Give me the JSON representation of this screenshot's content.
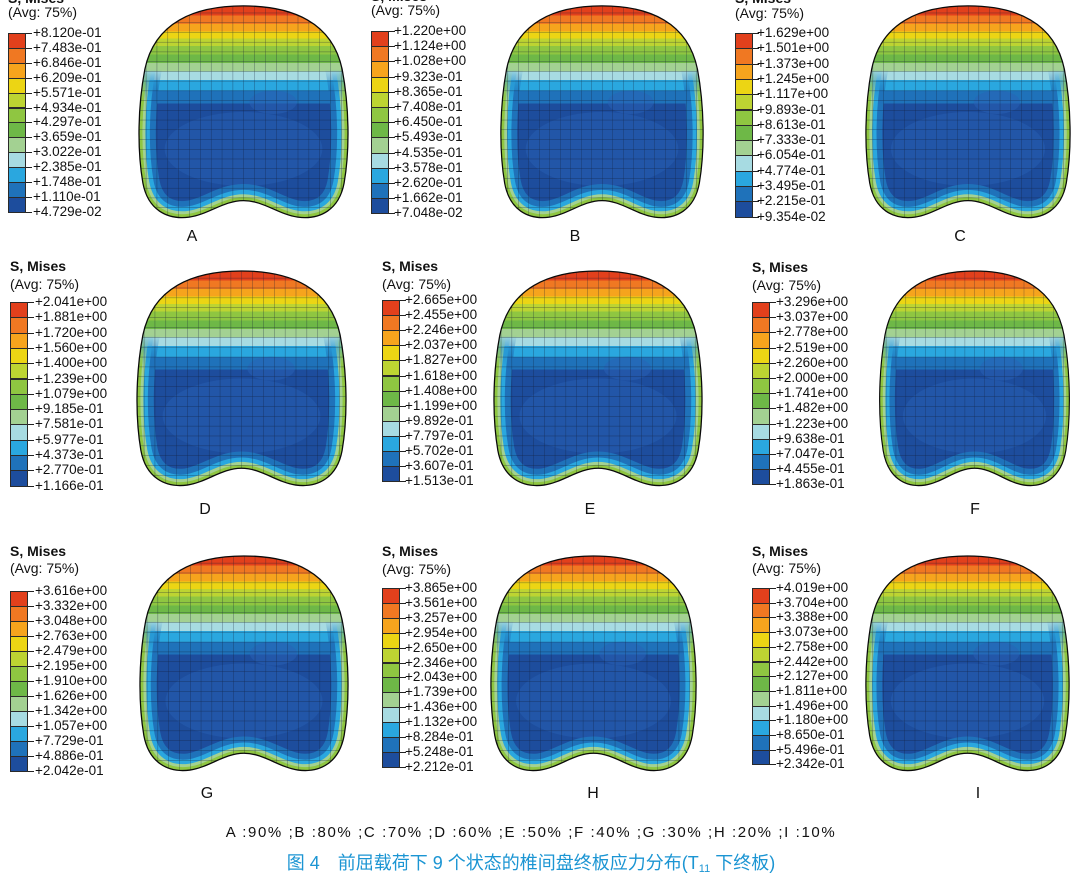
{
  "legend_colors": [
    "#e2401c",
    "#f07822",
    "#f6a41d",
    "#ecd514",
    "#bdd432",
    "#8fc641",
    "#6eb847",
    "#a3d192",
    "#a7dbe2",
    "#2aa7df",
    "#1f72ba",
    "#1d4d9d"
  ],
  "panels": [
    {
      "label": "A",
      "title": "S, Mises",
      "avg": "(Avg: 75%)",
      "ticks": [
        "+8.120e-01",
        "+7.483e-01",
        "+6.846e-01",
        "+6.209e-01",
        "+5.571e-01",
        "+4.934e-01",
        "+4.297e-01",
        "+3.659e-01",
        "+3.022e-01",
        "+2.385e-01",
        "+1.748e-01",
        "+1.110e-01",
        "+4.729e-02"
      ]
    },
    {
      "label": "B",
      "title": "S, Mises",
      "avg": "(Avg: 75%)",
      "ticks": [
        "+1.220e+00",
        "+1.124e+00",
        "+1.028e+00",
        "+9.323e-01",
        "+8.365e-01",
        "+7.408e-01",
        "+6.450e-01",
        "+5.493e-01",
        "+4.535e-01",
        "+3.578e-01",
        "+2.620e-01",
        "+1.662e-01",
        "+7.048e-02"
      ]
    },
    {
      "label": "C",
      "title": "S, Mises",
      "avg": "(Avg: 75%)",
      "ticks": [
        "+1.629e+00",
        "+1.501e+00",
        "+1.373e+00",
        "+1.245e+00",
        "+1.117e+00",
        "+9.893e-01",
        "+8.613e-01",
        "+7.333e-01",
        "+6.054e-01",
        "+4.774e-01",
        "+3.495e-01",
        "+2.215e-01",
        "+9.354e-02"
      ]
    },
    {
      "label": "D",
      "title": "S, Mises",
      "avg": "(Avg: 75%)",
      "ticks": [
        "+2.041e+00",
        "+1.881e+00",
        "+1.720e+00",
        "+1.560e+00",
        "+1.400e+00",
        "+1.239e+00",
        "+1.079e+00",
        "+9.185e-01",
        "+7.581e-01",
        "+5.977e-01",
        "+4.373e-01",
        "+2.770e-01",
        "+1.166e-01"
      ]
    },
    {
      "label": "E",
      "title": "S, Mises",
      "avg": "(Avg: 75%)",
      "ticks": [
        "+2.665e+00",
        "+2.455e+00",
        "+2.246e+00",
        "+2.037e+00",
        "+1.827e+00",
        "+1.618e+00",
        "+1.408e+00",
        "+1.199e+00",
        "+9.892e-01",
        "+7.797e-01",
        "+5.702e-01",
        "+3.607e-01",
        "+1.513e-01"
      ]
    },
    {
      "label": "F",
      "title": "S, Mises",
      "avg": "(Avg: 75%)",
      "ticks": [
        "+3.296e+00",
        "+3.037e+00",
        "+2.778e+00",
        "+2.519e+00",
        "+2.260e+00",
        "+2.000e+00",
        "+1.741e+00",
        "+1.482e+00",
        "+1.223e+00",
        "+9.638e-01",
        "+7.047e-01",
        "+4.455e-01",
        "+1.863e-01"
      ]
    },
    {
      "label": "G",
      "title": "S, Mises",
      "avg": "(Avg: 75%)",
      "ticks": [
        "+3.616e+00",
        "+3.332e+00",
        "+3.048e+00",
        "+2.763e+00",
        "+2.479e+00",
        "+2.195e+00",
        "+1.910e+00",
        "+1.626e+00",
        "+1.342e+00",
        "+1.057e+00",
        "+7.729e-01",
        "+4.886e-01",
        "+2.042e-01"
      ]
    },
    {
      "label": "H",
      "title": "S, Mises",
      "avg": "(Avg: 75%)",
      "ticks": [
        "+3.865e+00",
        "+3.561e+00",
        "+3.257e+00",
        "+2.954e+00",
        "+2.650e+00",
        "+2.346e+00",
        "+2.043e+00",
        "+1.739e+00",
        "+1.436e+00",
        "+1.132e+00",
        "+8.284e-01",
        "+5.248e-01",
        "+2.212e-01"
      ]
    },
    {
      "label": "I",
      "title": "S, Mises",
      "avg": "(Avg: 75%)",
      "ticks": [
        "+4.019e+00",
        "+3.704e+00",
        "+3.388e+00",
        "+3.073e+00",
        "+2.758e+00",
        "+2.442e+00",
        "+2.127e+00",
        "+1.811e+00",
        "+1.496e+00",
        "+1.180e+00",
        "+8.650e-01",
        "+5.496e-01",
        "+2.342e-01"
      ]
    }
  ],
  "caption": {
    "conditions": "A :90% ;B :80% ;C :70% ;D :60% ;E :50% ;F :40% ;G :30% ;H :20% ;I :10%",
    "fig_no": "图 4",
    "title": "前屈载荷下 9 个状态的椎间盘终板应力分布(T",
    "subscript": "11",
    "title_end": " 下终板)",
    "color": "#1b95d3"
  }
}
